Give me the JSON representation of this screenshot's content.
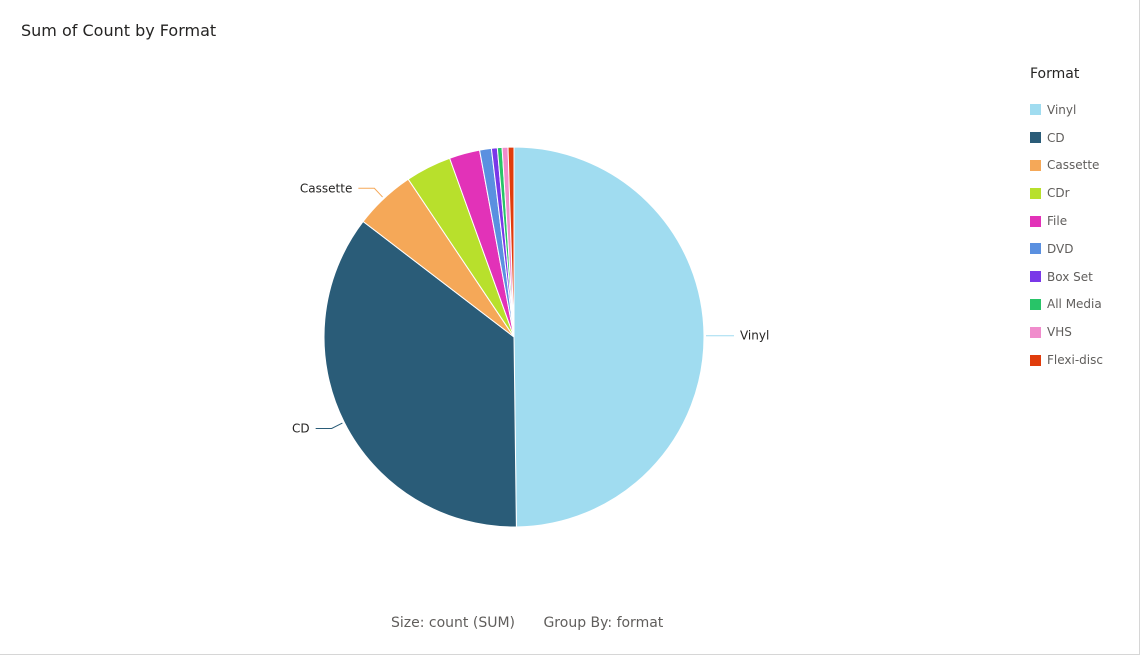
{
  "chart_data": {
    "type": "pie",
    "title": "Sum of Count by Format",
    "legend_title": "Format",
    "legend_position": "right",
    "categories": [
      "Vinyl",
      "CD",
      "Cassette",
      "CDr",
      "File",
      "DVD",
      "Box Set",
      "All Media",
      "VHS",
      "Flexi-disc"
    ],
    "values": [
      49.8,
      35.6,
      5.2,
      3.9,
      2.6,
      1.0,
      0.5,
      0.4,
      0.5,
      0.5
    ],
    "colors": [
      "#a0dcf0",
      "#2a5c78",
      "#f5a858",
      "#b8e02c",
      "#e232b8",
      "#5a90e0",
      "#7a38e8",
      "#28c468",
      "#f08ccc",
      "#e03c0c"
    ],
    "labeled_slices": [
      "Vinyl",
      "CD",
      "Cassette"
    ],
    "footer": {
      "size": "Size: count (SUM)",
      "group_by": "Group By: format"
    }
  }
}
